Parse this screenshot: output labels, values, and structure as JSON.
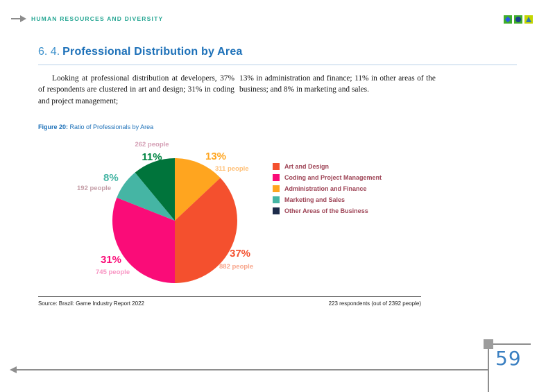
{
  "header": {
    "breadcrumb": "HUMAN RESOURCES AND DIVERSITY",
    "accent_color": "#26A693",
    "icons": [
      {
        "name": "diamond-icon",
        "bg": "#3FAE2A",
        "fg": "#2B59E8"
      },
      {
        "name": "circle-icon",
        "bg": "#3FAE2A",
        "fg": "#1A3E8C"
      },
      {
        "name": "triangle-icon",
        "bg": "#C3D600",
        "fg": "#2E74B5"
      }
    ]
  },
  "title": {
    "number": "6. 4.",
    "text": "Professional Distribution by Area",
    "color": "#1C70B8"
  },
  "body": {
    "col1": "Looking at professional distribution at devel­opers, 37% of respondents are clustered in art and design; 31% in coding and project management;",
    "col2": "13% in administration and finance; 11% in other ar­eas of the business; and 8% in marketing and sales."
  },
  "figure": {
    "caption_label": "Figure 20:",
    "caption_text": "Ratio of Professionals by Area",
    "source": "Source: Brazil: Game Industry Report 2022",
    "respondents": "223 respondents (out of 2392 people)"
  },
  "chart_data": {
    "type": "pie",
    "title": "Ratio of Professionals by Area",
    "start_angle_deg": 0,
    "direction": "clockwise",
    "slices": [
      {
        "id": "administration-finance",
        "label": "Administration and Finance",
        "percent": 13,
        "people": 311,
        "percent_label": "13%",
        "people_label": "311 people",
        "color": "#FFA51F",
        "percent_color": "#FFA51F",
        "people_color": "#FFC077"
      },
      {
        "id": "art-design",
        "label": "Art and Design",
        "percent": 37,
        "people": 882,
        "percent_label": "37%",
        "people_label": "882 people",
        "color": "#F4502E",
        "percent_color": "#F4502E",
        "people_color": "#F8A58B"
      },
      {
        "id": "coding-project-management",
        "label": "Coding and Project Management",
        "percent": 31,
        "people": 745,
        "percent_label": "31%",
        "people_label": "745 people",
        "color": "#FA0C78",
        "percent_color": "#FA0C78",
        "people_color": "#F895C3"
      },
      {
        "id": "marketing-sales",
        "label": "Marketing and Sales",
        "percent": 8,
        "people": 192,
        "percent_label": "8%",
        "people_label": "192 people",
        "color": "#45B5A4",
        "percent_color": "#45B5A4",
        "people_color": "#C59FA8"
      },
      {
        "id": "other-areas",
        "label": "Other Areas of the Business",
        "percent": 11,
        "people": 262,
        "percent_label": "11%",
        "people_label": "262 people",
        "color": "#00743B",
        "percent_color": "#008542",
        "people_color": "#D49EB4"
      }
    ],
    "legend": [
      {
        "label": "Art and Design",
        "swatch": "#F4502E"
      },
      {
        "label": "Coding and Project Management",
        "swatch": "#FA0C78"
      },
      {
        "label": "Administration and Finance",
        "swatch": "#FFA51F"
      },
      {
        "label": "Marketing and Sales",
        "swatch": "#45B5A4"
      },
      {
        "label": "Other Areas of the Business",
        "swatch": "#1C2B4A"
      }
    ],
    "legend_text_color": "#9E4456",
    "legend_position": "right"
  },
  "page": {
    "number": "59"
  }
}
